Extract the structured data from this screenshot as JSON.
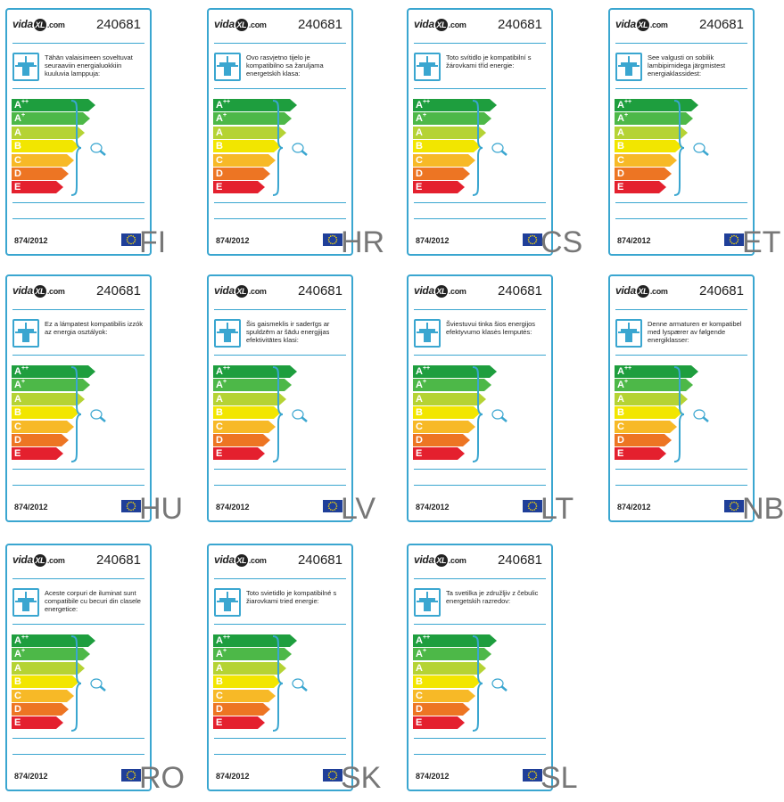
{
  "brand": "vidaXL.com",
  "brand_parts": [
    "vida",
    "XL",
    ".com"
  ],
  "article_number": "240681",
  "regulation": "874/2012",
  "energy_classes": [
    {
      "letter": "A",
      "sup": "++",
      "color": "#1e9e3e"
    },
    {
      "letter": "A",
      "sup": "+",
      "color": "#4db848"
    },
    {
      "letter": "A",
      "sup": "",
      "color": "#b5d334"
    },
    {
      "letter": "B",
      "sup": "",
      "color": "#f2e600"
    },
    {
      "letter": "C",
      "sup": "",
      "color": "#f7b927"
    },
    {
      "letter": "D",
      "sup": "",
      "color": "#ed7523"
    },
    {
      "letter": "E",
      "sup": "",
      "color": "#e4202e"
    }
  ],
  "accent_color": "#3aa6d0",
  "labels": [
    {
      "lang": "FI",
      "text": "Tähän valaisimeen soveltuvat seuraaviin energialuokkiin kuuluvia lamppuja:"
    },
    {
      "lang": "HR",
      "text": "Ovo rasvjetno tijelo je kompatibilno sa žaruljama energetskih klasa:"
    },
    {
      "lang": "CS",
      "text": "Toto svítidlo je kompatibilní s žárovkami tříd energie:"
    },
    {
      "lang": "ET",
      "text": "See valgusti on sobilik lambipirnidega järgmistest energiaklassidest:"
    },
    {
      "lang": "HU",
      "text": "Ez a lámpatest kompatibilis izzók az energia osztályok:"
    },
    {
      "lang": "LV",
      "text": "Šis gaismeklis ir saderīgs ar spuldzēm ar šādu energjijas efektivitātes klasi:"
    },
    {
      "lang": "LT",
      "text": "Šviestuvui tinka šios energijos efektyvumo klasės lemputės:"
    },
    {
      "lang": "NB",
      "text": "Denne armaturen er kompatibel med lyspærer av følgende energiklasser:"
    },
    {
      "lang": "RO",
      "text": "Aceste corpuri de iluminat sunt compatibile cu becuri din clasele energetice:"
    },
    {
      "lang": "SK",
      "text": "Toto svietidlo je kompatibilné s žiarovkami tried energie:"
    },
    {
      "lang": "SL",
      "text": "Ta svetilka je združljiv z čebulic energetskih razredov:"
    }
  ]
}
